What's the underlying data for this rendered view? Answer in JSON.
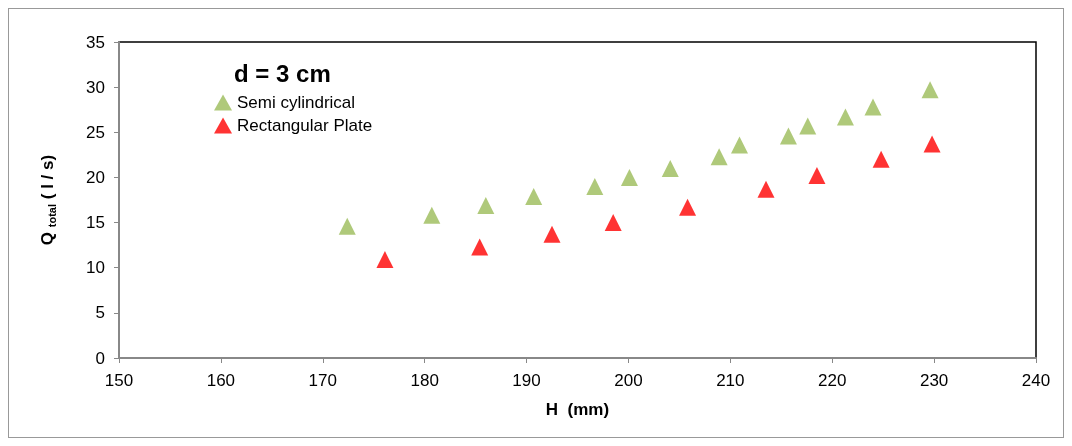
{
  "chart_data": {
    "type": "scatter",
    "legend_title": "d = 3 cm",
    "xlabel": "H  (mm)",
    "ylabel": "Q $_{total}$ ( l / s)",
    "series": [
      {
        "name": "Semi cylindrical",
        "color": "#9bbb59",
        "x": [
          172.4,
          180.7,
          186.0,
          190.7,
          196.7,
          200.1,
          204.1,
          208.9,
          210.9,
          215.7,
          217.6,
          221.3,
          224.0,
          229.6
        ],
        "values": [
          14.6,
          15.8,
          16.9,
          17.9,
          19.0,
          20.0,
          21.0,
          22.3,
          23.6,
          24.6,
          25.7,
          26.7,
          27.8,
          29.7
        ]
      },
      {
        "name": "Rectangular Plate",
        "color": "#ff0000",
        "x": [
          176.1,
          185.4,
          192.5,
          198.5,
          205.8,
          213.5,
          218.5,
          224.8,
          229.8
        ],
        "values": [
          10.9,
          12.3,
          13.7,
          15.0,
          16.7,
          18.7,
          20.2,
          22.0,
          23.7
        ]
      }
    ],
    "xlim": [
      150,
      240
    ],
    "xticks": [
      150,
      160,
      170,
      180,
      190,
      200,
      210,
      220,
      230,
      240
    ],
    "ylim": [
      0,
      35
    ],
    "yticks": [
      0,
      5,
      10,
      15,
      20,
      25,
      30,
      35
    ],
    "grid": false,
    "legend": "top left",
    "marker": "triangle"
  }
}
